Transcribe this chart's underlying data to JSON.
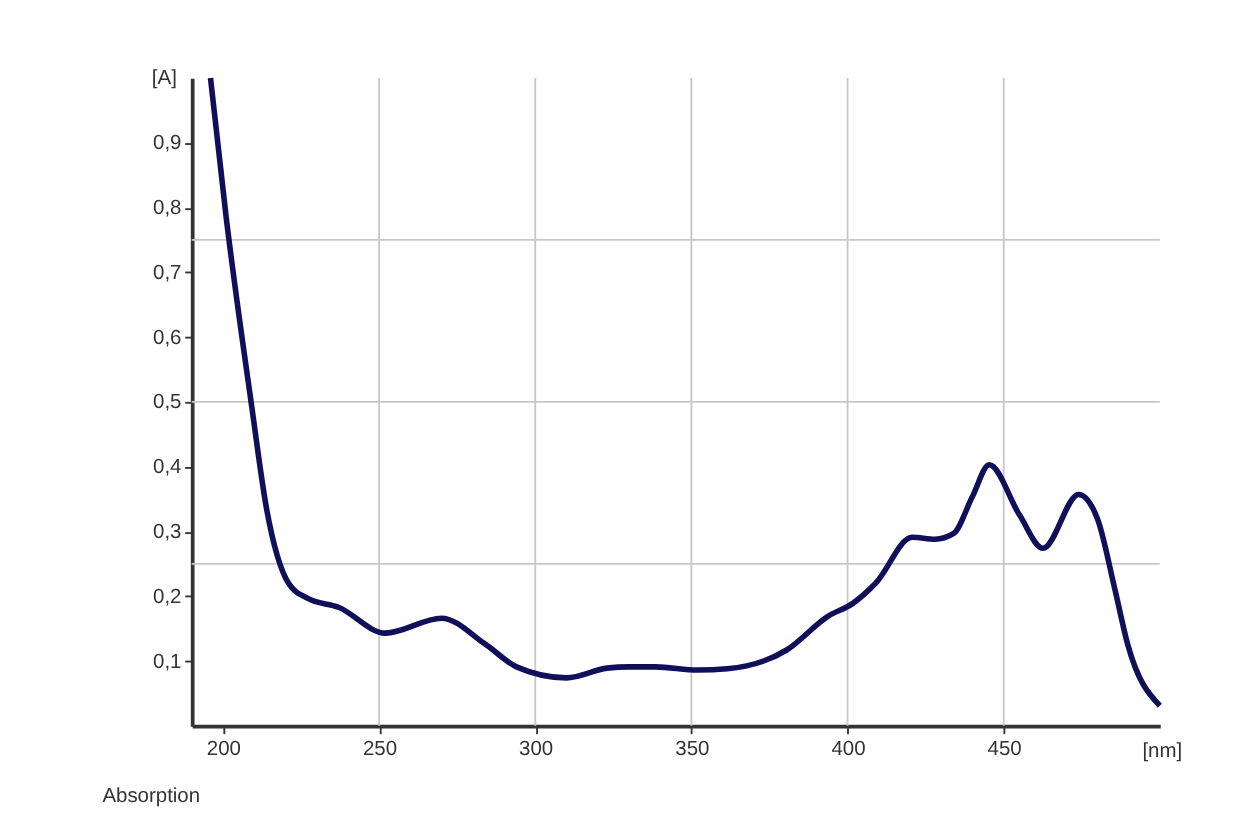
{
  "chart_data": {
    "type": "line",
    "xlabel": "[nm]",
    "ylabel": "[A]",
    "annotations": [
      "Absorption"
    ],
    "x": [
      196,
      201,
      209,
      214,
      221,
      227,
      237,
      252,
      270,
      284,
      294,
      310,
      323,
      330,
      338.5,
      352,
      361.5,
      380.5,
      393.7,
      401.7,
      409,
      420.7,
      428,
      434,
      440,
      445.4,
      455,
      462.6,
      474,
      480,
      485.6,
      489.7,
      500
    ],
    "series": [
      {
        "color": "#10105a",
        "values": [
          1.0,
          0.786,
          0.5,
          0.334,
          0.22,
          0.197,
          0.183,
          0.143,
          0.166,
          0.126,
          0.091,
          0.074,
          0.089,
          0.091,
          0.091,
          0.086,
          0.088,
          0.117,
          0.169,
          0.189,
          0.22,
          0.291,
          0.288,
          0.297,
          0.354,
          0.403,
          0.326,
          0.274,
          0.357,
          0.32,
          0.211,
          0.126,
          0.031
        ]
      }
    ],
    "xlim": [
      190,
      500
    ],
    "ylim": [
      0,
      1
    ],
    "xticks": [
      200,
      250,
      300,
      350,
      400,
      450
    ],
    "yticks": [
      {
        "value": 0.1,
        "label": "0,1"
      },
      {
        "value": 0.2,
        "label": "0,2"
      },
      {
        "value": 0.3,
        "label": "0,3"
      },
      {
        "value": 0.4,
        "label": "0,4"
      },
      {
        "value": 0.5,
        "label": "0,5"
      },
      {
        "value": 0.6,
        "label": "0,6"
      },
      {
        "value": 0.7,
        "label": "0,7"
      },
      {
        "value": 0.8,
        "label": "0,8"
      },
      {
        "value": 0.9,
        "label": "0,9"
      },
      {
        "value": 0.25,
        "label": null
      },
      {
        "value": 0.5,
        "label": null
      },
      {
        "value": 0.75,
        "label": null
      }
    ],
    "grid": true,
    "marker": "none",
    "line_style": "solid"
  }
}
